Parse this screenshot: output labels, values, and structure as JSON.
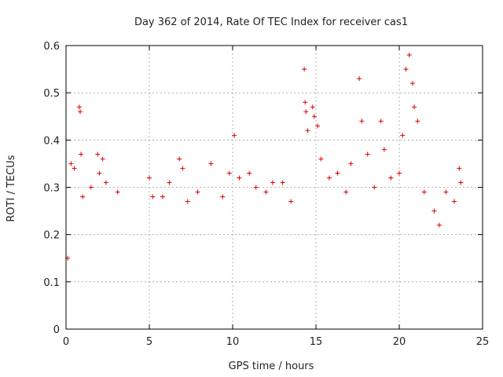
{
  "chart_data": {
    "type": "scatter",
    "title": "Day 362 of 2014, Rate Of TEC Index for receiver cas1",
    "xlabel": "GPS time / hours",
    "ylabel": "ROTI / TECUs",
    "xlim": [
      0,
      25
    ],
    "ylim": [
      0,
      0.6
    ],
    "x_ticks": [
      0,
      5,
      10,
      15,
      20,
      25
    ],
    "y_ticks": [
      0,
      0.1,
      0.2,
      0.3,
      0.4,
      0.5,
      0.6
    ],
    "x_tick_labels": [
      "0",
      "5",
      "10",
      "15",
      "20",
      "25"
    ],
    "y_tick_labels": [
      "0",
      "0.1",
      "0.2",
      "0.3",
      "0.4",
      "0.5",
      "0.6"
    ],
    "grid": true,
    "marker": "plus",
    "color": "#e00000",
    "series": [
      {
        "points": [
          [
            0.1,
            0.15
          ],
          [
            0.3,
            0.35
          ],
          [
            0.5,
            0.34
          ],
          [
            0.8,
            0.47
          ],
          [
            0.85,
            0.46
          ],
          [
            0.9,
            0.37
          ],
          [
            1.0,
            0.28
          ],
          [
            1.5,
            0.3
          ],
          [
            1.9,
            0.37
          ],
          [
            2.0,
            0.33
          ],
          [
            2.2,
            0.36
          ],
          [
            2.4,
            0.31
          ],
          [
            3.1,
            0.29
          ],
          [
            5.0,
            0.32
          ],
          [
            5.2,
            0.28
          ],
          [
            5.8,
            0.28
          ],
          [
            6.2,
            0.31
          ],
          [
            6.8,
            0.36
          ],
          [
            7.0,
            0.34
          ],
          [
            7.3,
            0.27
          ],
          [
            7.9,
            0.29
          ],
          [
            8.7,
            0.35
          ],
          [
            9.4,
            0.28
          ],
          [
            9.8,
            0.33
          ],
          [
            10.1,
            0.41
          ],
          [
            10.4,
            0.32
          ],
          [
            11.0,
            0.33
          ],
          [
            11.4,
            0.3
          ],
          [
            12.0,
            0.29
          ],
          [
            12.4,
            0.31
          ],
          [
            13.0,
            0.31
          ],
          [
            13.5,
            0.27
          ],
          [
            14.3,
            0.55
          ],
          [
            14.35,
            0.48
          ],
          [
            14.4,
            0.46
          ],
          [
            14.5,
            0.42
          ],
          [
            14.8,
            0.47
          ],
          [
            14.9,
            0.45
          ],
          [
            15.1,
            0.43
          ],
          [
            15.3,
            0.36
          ],
          [
            15.8,
            0.32
          ],
          [
            16.3,
            0.33
          ],
          [
            16.8,
            0.29
          ],
          [
            17.1,
            0.35
          ],
          [
            17.6,
            0.53
          ],
          [
            17.75,
            0.44
          ],
          [
            18.1,
            0.37
          ],
          [
            18.5,
            0.3
          ],
          [
            18.9,
            0.44
          ],
          [
            19.1,
            0.38
          ],
          [
            19.5,
            0.32
          ],
          [
            20.0,
            0.33
          ],
          [
            20.2,
            0.41
          ],
          [
            20.4,
            0.55
          ],
          [
            20.6,
            0.58
          ],
          [
            20.8,
            0.52
          ],
          [
            20.9,
            0.47
          ],
          [
            21.1,
            0.44
          ],
          [
            21.5,
            0.29
          ],
          [
            22.1,
            0.25
          ],
          [
            22.4,
            0.22
          ],
          [
            22.8,
            0.29
          ],
          [
            23.3,
            0.27
          ],
          [
            23.6,
            0.34
          ],
          [
            23.7,
            0.31
          ]
        ]
      }
    ]
  }
}
